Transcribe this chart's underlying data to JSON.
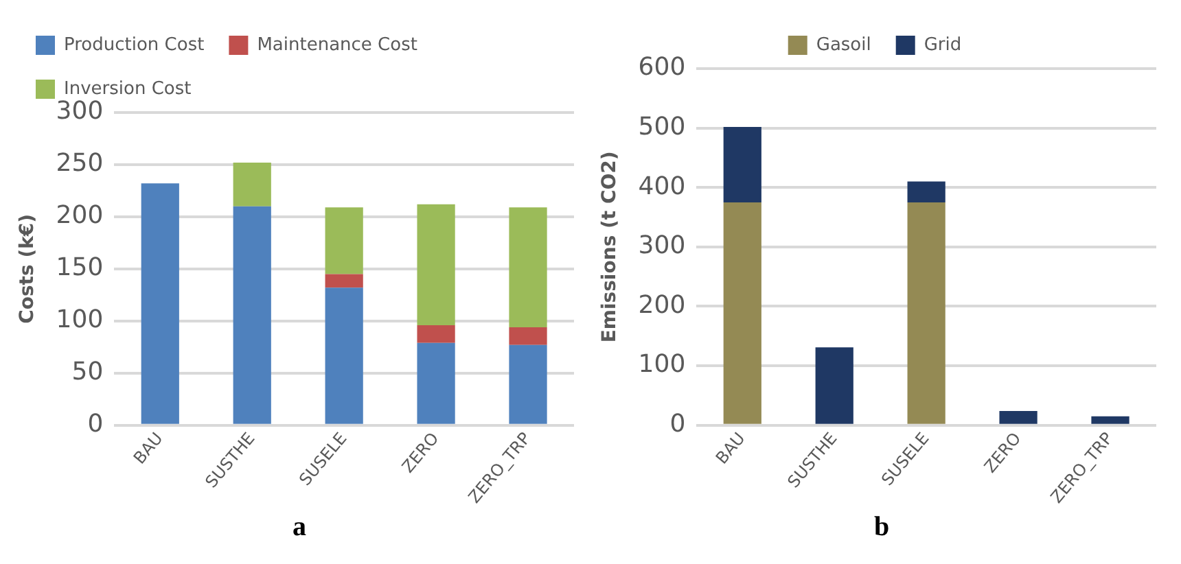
{
  "chart_data": [
    {
      "type": "bar",
      "stacked": true,
      "categories": [
        "BAU",
        "SUSTHE",
        "SUSELE",
        "ZERO",
        "ZERO_TRP"
      ],
      "ylabel": "Costs (k€)",
      "ylim": [
        0,
        300
      ],
      "yticks": [
        0,
        50,
        100,
        150,
        200,
        250,
        300
      ],
      "grid": "y",
      "legend": "top left",
      "annotations": [
        "a"
      ],
      "series": [
        {
          "name": "Production Cost",
          "color": "#4f81bd",
          "values": [
            232,
            210,
            132,
            79,
            77
          ]
        },
        {
          "name": "Maintenance Cost",
          "color": "#c0504d",
          "values": [
            0,
            0,
            13,
            17,
            17
          ]
        },
        {
          "name": "Inversion Cost",
          "color": "#9bbb59",
          "values": [
            0,
            42,
            64,
            116,
            115
          ]
        }
      ]
    },
    {
      "type": "bar",
      "stacked": true,
      "categories": [
        "BAU",
        "SUSTHE",
        "SUSELE",
        "ZERO",
        "ZERO_TRP"
      ],
      "ylabel": "Emissions (t CO2)",
      "ylim": [
        0,
        600
      ],
      "yticks": [
        0,
        100,
        200,
        300,
        400,
        500,
        600
      ],
      "grid": "y",
      "legend": "top",
      "annotations": [
        "b"
      ],
      "series": [
        {
          "name": "Gasoil",
          "color": "#948a54",
          "values": [
            375,
            0,
            375,
            0,
            0
          ]
        },
        {
          "name": "Grid",
          "color": "#1f3864",
          "values": [
            127,
            131,
            35,
            24,
            15
          ]
        }
      ]
    }
  ]
}
